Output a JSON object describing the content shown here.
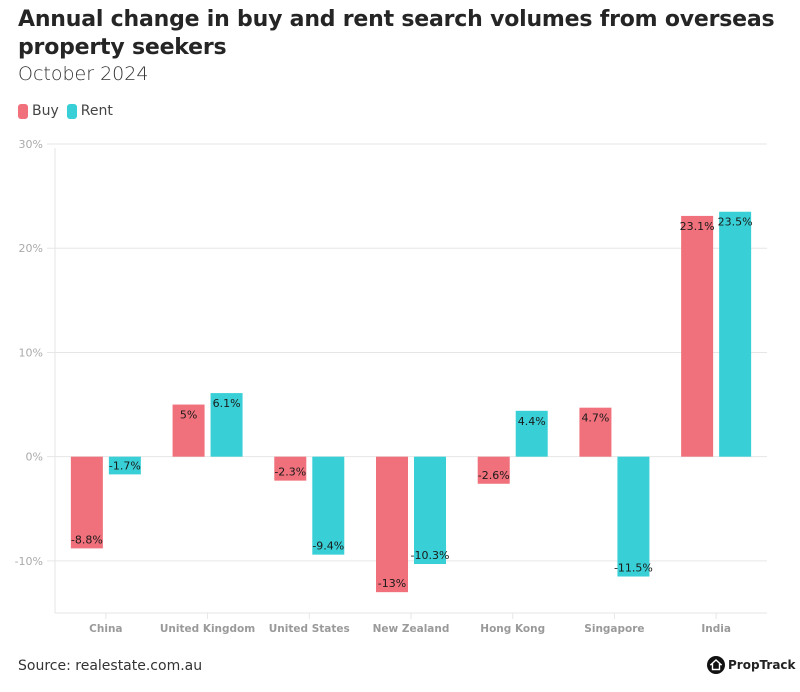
{
  "chart_data": {
    "type": "bar",
    "title": "Annual change in buy and rent search volumes from overseas property seekers",
    "subtitle": "October 2024",
    "xlabel": "",
    "ylabel": "",
    "categories": [
      "China",
      "United Kingdom",
      "United States",
      "New Zealand",
      "Hong Kong",
      "Singapore",
      "India"
    ],
    "series": [
      {
        "name": "Buy",
        "color": "#f0707b",
        "values": [
          -8.8,
          5,
          -2.3,
          -13,
          -2.6,
          4.7,
          23.1
        ],
        "labels": [
          "-8.8%",
          "5%",
          "-2.3%",
          "-13%",
          "-2.6%",
          "4.7%",
          "23.1%"
        ]
      },
      {
        "name": "Rent",
        "color": "#38d0d6",
        "values": [
          -1.7,
          6.1,
          -9.4,
          -10.3,
          4.4,
          -11.5,
          23.5
        ],
        "labels": [
          "-1.7%",
          "6.1%",
          "-9.4%",
          "-10.3%",
          "4.4%",
          "-11.5%",
          "23.5%"
        ]
      }
    ],
    "ylim": [
      -15,
      30
    ],
    "yticks": [
      30,
      20,
      10,
      0,
      -10
    ],
    "ytick_labels": [
      "30%",
      "20%",
      "10%",
      "0%",
      "-10%"
    ],
    "grid": true,
    "legend": "top-left"
  },
  "footer": {
    "source": "Source: realestate.com.au",
    "brand": "PropTrack"
  }
}
